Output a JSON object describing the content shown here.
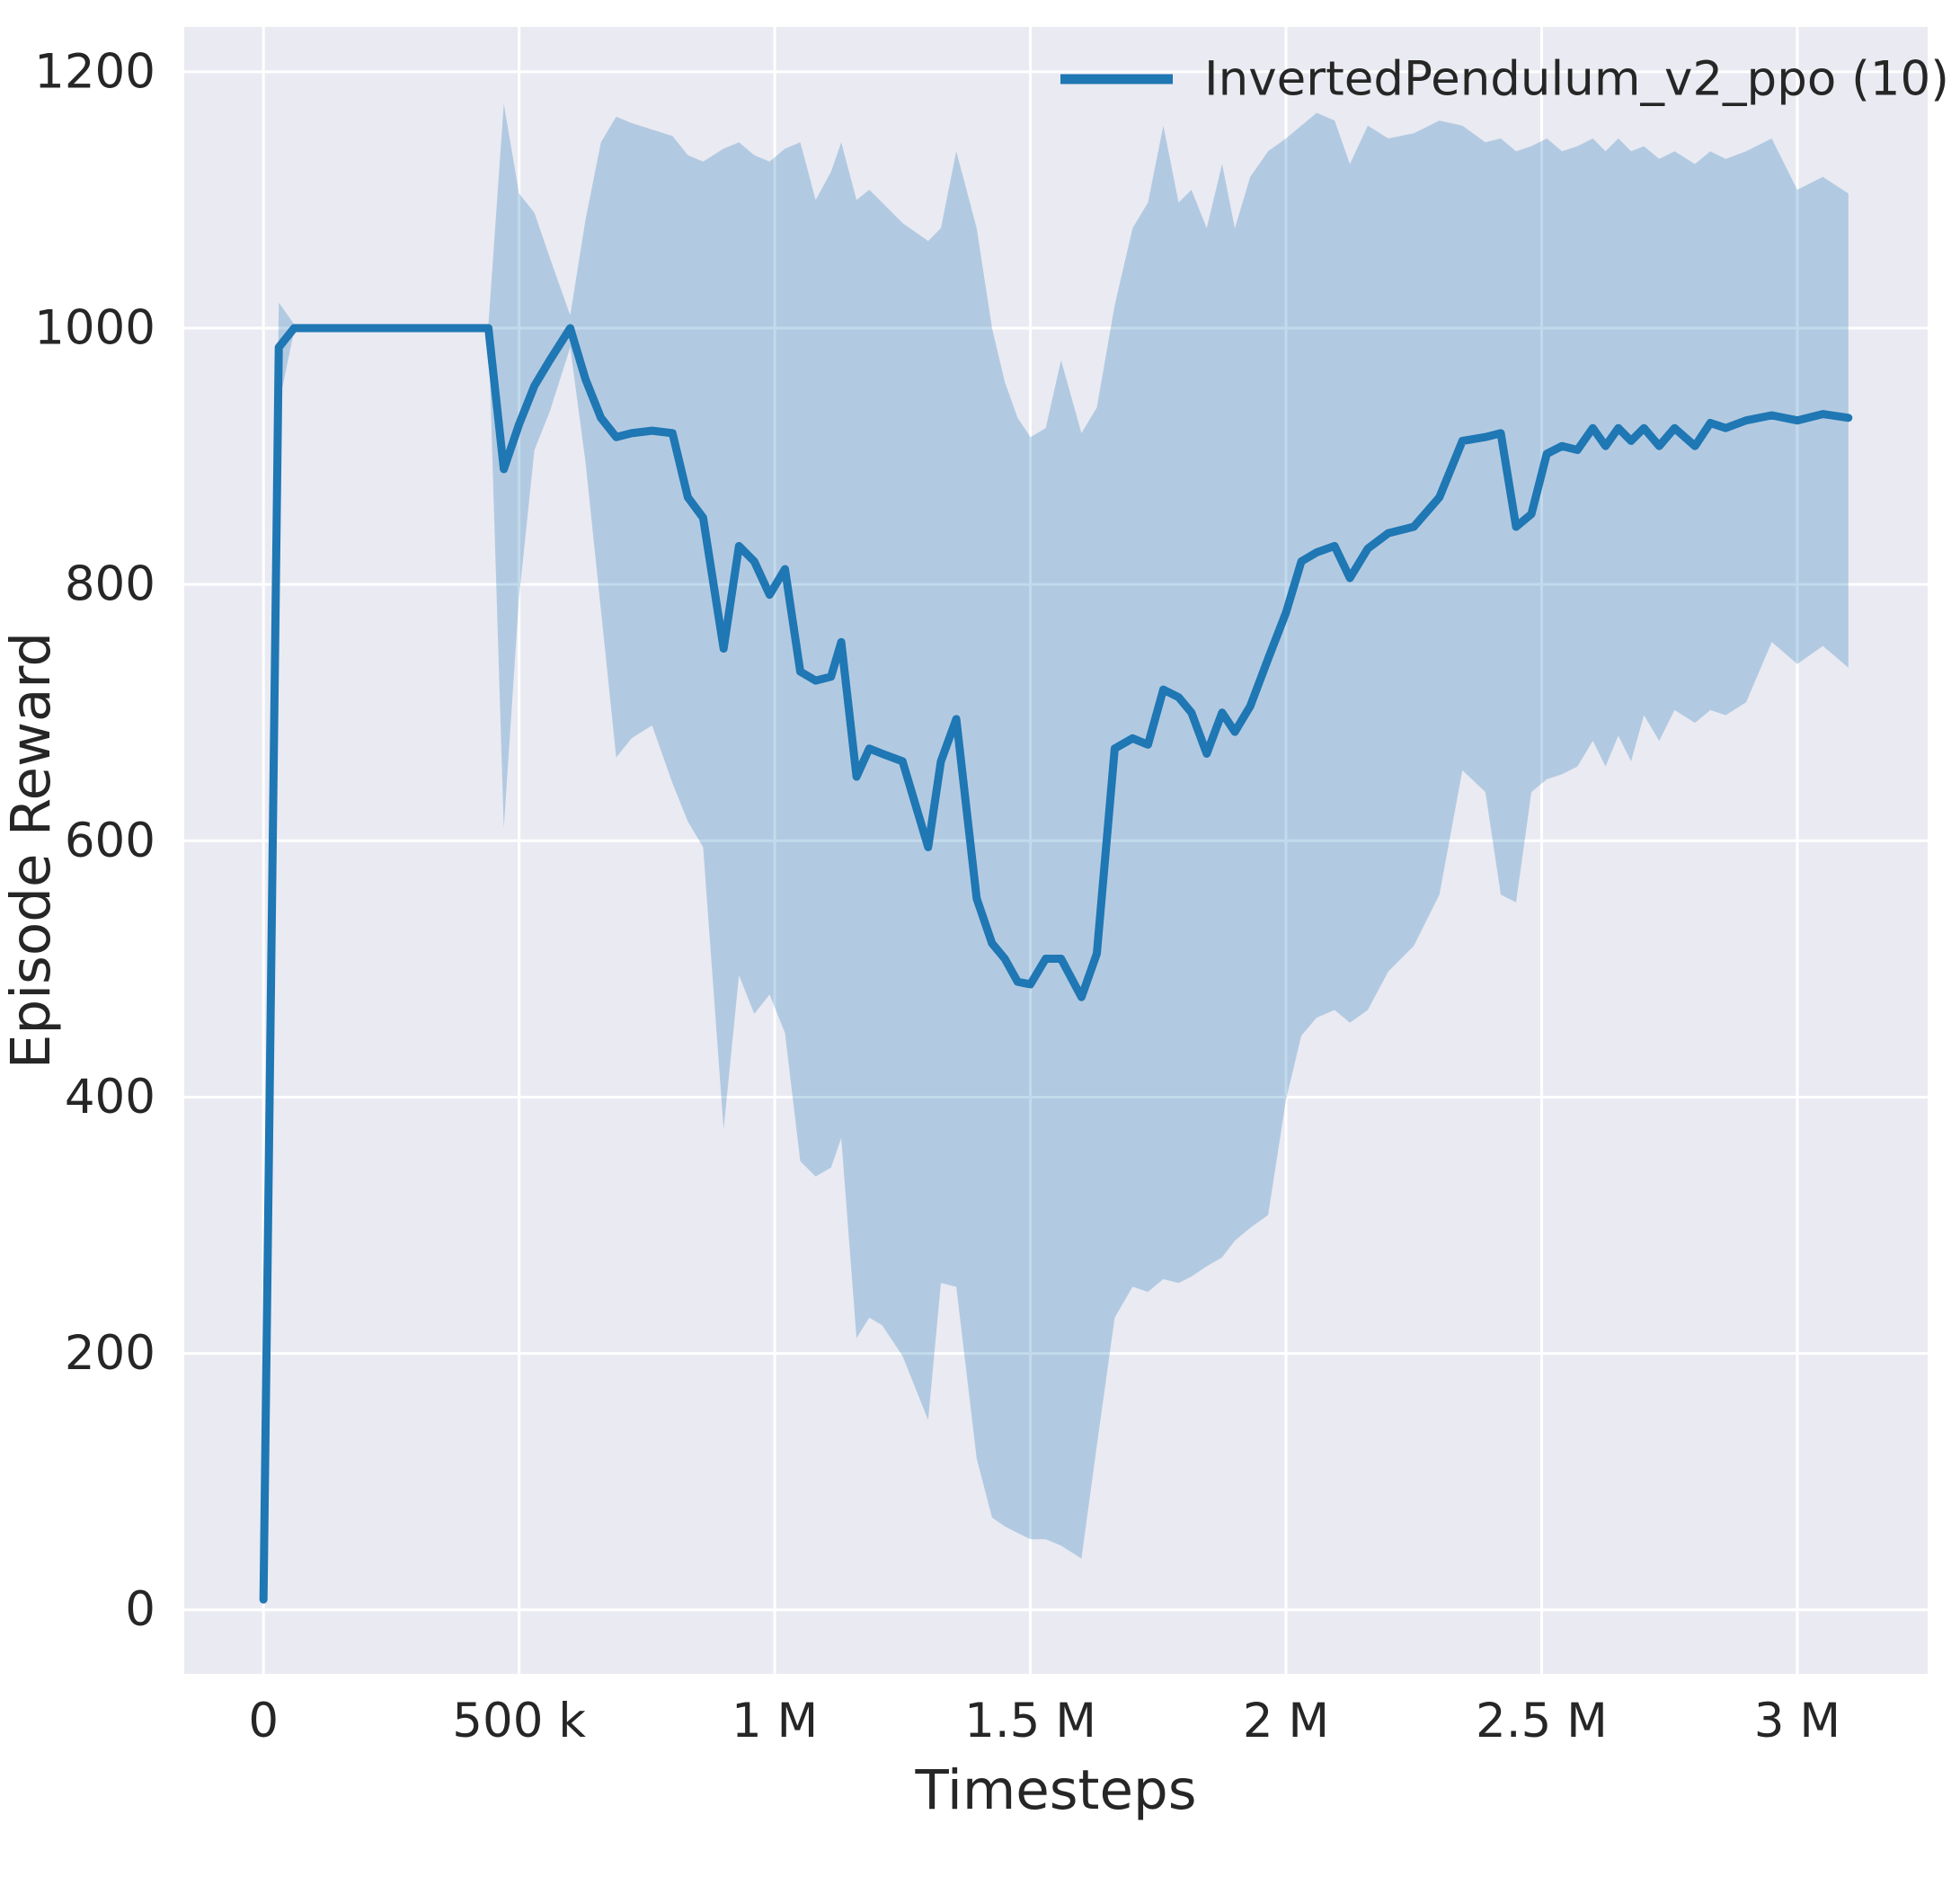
{
  "figure": {
    "background_color": "#ffffff",
    "plot_background_color": "#eaeaf2",
    "grid_color": "#ffffff",
    "text_color": "#262626"
  },
  "chart_data": {
    "type": "line",
    "title": "",
    "xlabel": "Timesteps",
    "ylabel": "Episode Reward",
    "grid": true,
    "legend_position": "upper right",
    "xlim": [
      -155000,
      3255000
    ],
    "ylim": [
      -50,
      1235
    ],
    "x_ticks": [
      {
        "v": 0,
        "label": "0"
      },
      {
        "v": 500000,
        "label": "500 k"
      },
      {
        "v": 1000000,
        "label": "1 M"
      },
      {
        "v": 1500000,
        "label": "1.5 M"
      },
      {
        "v": 2000000,
        "label": "2 M"
      },
      {
        "v": 2500000,
        "label": "2.5 M"
      },
      {
        "v": 3000000,
        "label": "3 M"
      }
    ],
    "y_ticks": [
      {
        "v": 0,
        "label": "0"
      },
      {
        "v": 200,
        "label": "200"
      },
      {
        "v": 400,
        "label": "400"
      },
      {
        "v": 600,
        "label": "600"
      },
      {
        "v": 800,
        "label": "800"
      },
      {
        "v": 1000,
        "label": "1000"
      },
      {
        "v": 1200,
        "label": "1200"
      }
    ],
    "series": [
      {
        "name": "InvertedPendulum_v2_ppo (10)",
        "color": "#1f77b4",
        "band_opacity": 0.27,
        "line_width": 9,
        "x": [
          0,
          30000,
          60000,
          120000,
          200000,
          280000,
          360000,
          440000,
          470000,
          500000,
          530000,
          560000,
          600000,
          630000,
          660000,
          690000,
          720000,
          760000,
          800000,
          830000,
          860000,
          900000,
          930000,
          960000,
          990000,
          1020000,
          1050000,
          1080000,
          1110000,
          1130000,
          1160000,
          1185000,
          1210000,
          1250000,
          1300000,
          1325000,
          1355000,
          1395000,
          1425000,
          1450000,
          1475000,
          1500000,
          1530000,
          1560000,
          1600000,
          1630000,
          1665000,
          1700000,
          1730000,
          1760000,
          1790000,
          1815000,
          1845000,
          1875000,
          1900000,
          1930000,
          1965000,
          2000000,
          2030000,
          2060000,
          2095000,
          2125000,
          2160000,
          2200000,
          2250000,
          2300000,
          2345000,
          2390000,
          2420000,
          2450000,
          2480000,
          2510000,
          2540000,
          2570000,
          2600000,
          2625000,
          2650000,
          2675000,
          2700000,
          2730000,
          2760000,
          2800000,
          2830000,
          2860000,
          2900000,
          2950000,
          3000000,
          3050000,
          3100000
        ],
        "mean": [
          8,
          985,
          1000,
          1000,
          1000,
          1000,
          1000,
          1000,
          890,
          925,
          955,
          975,
          1000,
          960,
          930,
          915,
          918,
          920,
          918,
          868,
          852,
          750,
          830,
          818,
          792,
          812,
          732,
          725,
          728,
          755,
          650,
          672,
          668,
          662,
          595,
          662,
          695,
          555,
          520,
          508,
          490,
          488,
          508,
          508,
          478,
          512,
          672,
          680,
          675,
          718,
          712,
          700,
          668,
          700,
          685,
          705,
          742,
          778,
          818,
          825,
          830,
          805,
          828,
          840,
          845,
          868,
          912,
          915,
          918,
          845,
          855,
          902,
          908,
          905,
          922,
          908,
          922,
          912,
          922,
          908,
          922,
          908,
          926,
          922,
          928,
          932,
          928,
          933,
          930
        ],
        "low": [
          8,
          940,
          998,
          998,
          998,
          998,
          998,
          998,
          610,
          790,
          905,
          935,
          985,
          895,
          780,
          665,
          680,
          690,
          645,
          615,
          595,
          375,
          495,
          465,
          480,
          450,
          350,
          338,
          345,
          368,
          212,
          228,
          222,
          198,
          148,
          255,
          252,
          118,
          72,
          65,
          60,
          55,
          55,
          50,
          40,
          128,
          228,
          252,
          248,
          258,
          255,
          260,
          268,
          275,
          288,
          298,
          308,
          398,
          448,
          462,
          468,
          458,
          468,
          498,
          518,
          558,
          655,
          638,
          558,
          552,
          638,
          648,
          652,
          658,
          678,
          658,
          682,
          662,
          698,
          678,
          702,
          692,
          702,
          698,
          708,
          755,
          738,
          752,
          735
        ],
        "high": [
          8,
          1020,
          1003,
          1003,
          1003,
          1003,
          1003,
          1003,
          1175,
          1105,
          1090,
          1055,
          1010,
          1085,
          1145,
          1165,
          1160,
          1155,
          1150,
          1135,
          1130,
          1140,
          1145,
          1135,
          1130,
          1140,
          1145,
          1100,
          1122,
          1145,
          1100,
          1108,
          1098,
          1082,
          1068,
          1078,
          1138,
          1078,
          1000,
          958,
          930,
          915,
          922,
          975,
          918,
          938,
          1018,
          1078,
          1098,
          1158,
          1098,
          1108,
          1078,
          1128,
          1078,
          1118,
          1138,
          1148,
          1158,
          1168,
          1162,
          1128,
          1158,
          1148,
          1152,
          1162,
          1158,
          1145,
          1148,
          1138,
          1142,
          1148,
          1138,
          1142,
          1148,
          1138,
          1148,
          1138,
          1142,
          1132,
          1138,
          1128,
          1138,
          1132,
          1138,
          1148,
          1108,
          1118,
          1105
        ]
      }
    ]
  }
}
